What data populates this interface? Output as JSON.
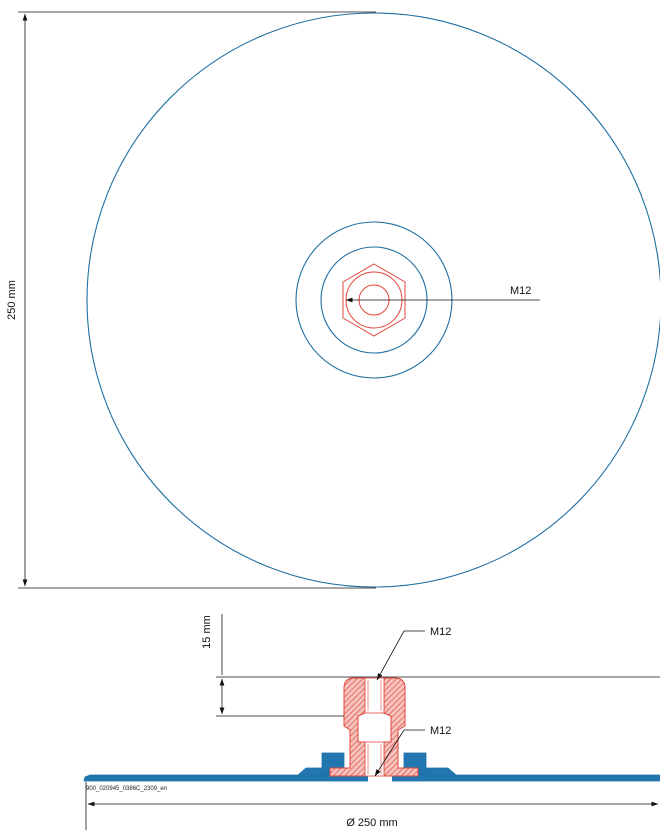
{
  "top_view": {
    "diameter_label": "250 mm",
    "thread_label": "M12"
  },
  "section_view": {
    "height_label": "15 mm",
    "thread_top_label": "M12",
    "thread_bottom_label": "M12",
    "diameter_label": "Ø 250 mm",
    "drawing_code": "900_020945_0386C_2309_en"
  },
  "colors": {
    "outline_blue": "#1f6fa3",
    "plate_fill": "#2277b0",
    "thread_red": "#e0453a",
    "hatch_fill": "#f4b6b0",
    "dimension_black": "#111111"
  }
}
